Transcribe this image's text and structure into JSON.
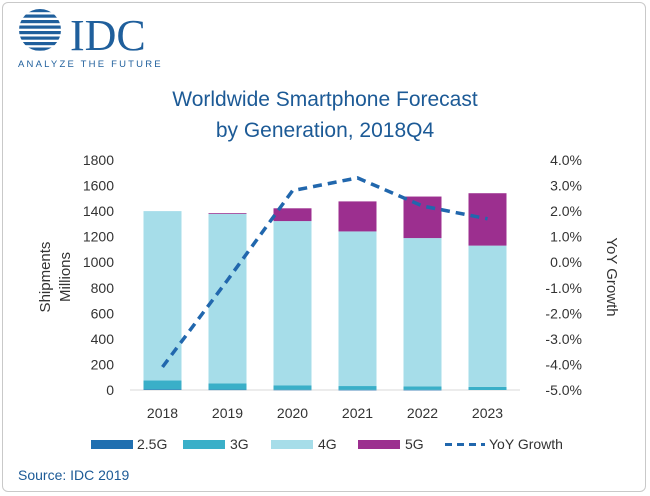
{
  "logo": {
    "name": "IDC",
    "tagline": "ANALYZE THE FUTURE",
    "color": "#1f5f9c"
  },
  "source": "Source: IDC 2019",
  "colors": {
    "g25": "#1f6fb0",
    "g3": "#3aafc8",
    "g4": "#a6dde9",
    "g5": "#9c2f8f",
    "yoy": "#2167ad",
    "title": "#1c5a96",
    "axis_text": "#333333",
    "gridline": "#d9d9d9"
  },
  "chart_data": {
    "type": "bar",
    "stacked": true,
    "title": [
      "Worldwide Smartphone Forecast",
      "by Generation, 2018Q4"
    ],
    "categories": [
      "2018",
      "2019",
      "2020",
      "2021",
      "2022",
      "2023"
    ],
    "ylabel_left": [
      "Shipments",
      "Millions"
    ],
    "ylabel_right": "YoY Growth",
    "ylim_left": [
      0,
      1800
    ],
    "yticks_left": [
      "0",
      "200",
      "400",
      "600",
      "800",
      "1000",
      "1200",
      "1400",
      "1600",
      "1800"
    ],
    "ylim_right": [
      -5.0,
      4.0
    ],
    "yticks_right": [
      "-5.0%",
      "-4.0%",
      "-3.0%",
      "-2.0%",
      "-1.0%",
      "0.0%",
      "1.0%",
      "2.0%",
      "3.0%",
      "4.0%"
    ],
    "grid": false,
    "legend_position": "bottom",
    "series": [
      {
        "name": "2.5G",
        "colorKey": "g25",
        "values": [
          5,
          3,
          2,
          1,
          1,
          0
        ]
      },
      {
        "name": "3G",
        "colorKey": "g3",
        "values": [
          70,
          48,
          35,
          30,
          28,
          25
        ]
      },
      {
        "name": "4G",
        "colorKey": "g4",
        "values": [
          1325,
          1328,
          1285,
          1210,
          1160,
          1105
        ]
      },
      {
        "name": "5G",
        "colorKey": "g5",
        "values": [
          0,
          6,
          100,
          235,
          325,
          410
        ]
      }
    ],
    "line_series": {
      "name": "YoY Growth",
      "axis": "right",
      "style": "dashed",
      "values": [
        -4.1,
        -0.7,
        2.8,
        3.3,
        2.2,
        1.7
      ]
    }
  }
}
